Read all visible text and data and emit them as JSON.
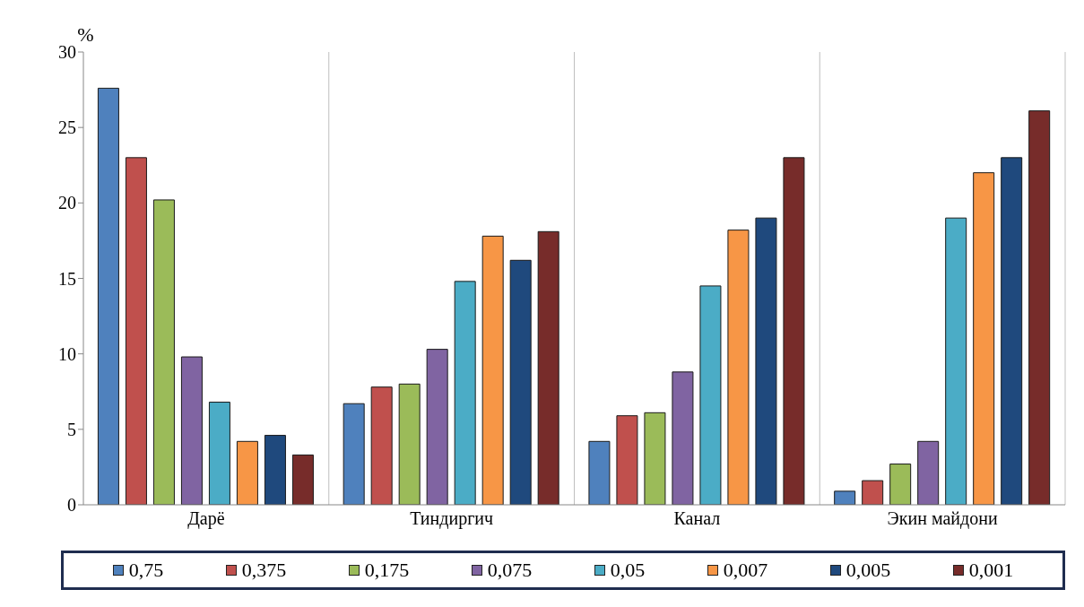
{
  "chart_data": {
    "type": "bar",
    "ylabel": "%",
    "categories": [
      "Дарё",
      "Тиндиргич",
      "Канал",
      "Экин майдони"
    ],
    "series": [
      {
        "name": "0,75",
        "color": "#4f81bd",
        "values": [
          27.6,
          6.7,
          4.2,
          0.9
        ]
      },
      {
        "name": "0,375",
        "color": "#c0504d",
        "values": [
          23.0,
          7.8,
          5.9,
          1.6
        ]
      },
      {
        "name": "0,175",
        "color": "#9bbb59",
        "values": [
          20.2,
          8.0,
          6.1,
          2.7
        ]
      },
      {
        "name": "0,075",
        "color": "#8064a2",
        "values": [
          9.8,
          10.3,
          8.8,
          4.2
        ]
      },
      {
        "name": "0,05",
        "color": "#4bacc6",
        "values": [
          6.8,
          14.8,
          14.5,
          19.0
        ]
      },
      {
        "name": "0,007",
        "color": "#f79646",
        "values": [
          4.2,
          17.8,
          18.2,
          22.0
        ]
      },
      {
        "name": "0,005",
        "color": "#1f497d",
        "values": [
          4.6,
          16.2,
          19.0,
          23.0
        ]
      },
      {
        "name": "0,001",
        "color": "#772c2a",
        "values": [
          3.3,
          18.1,
          23.0,
          26.1
        ]
      }
    ],
    "ylim": [
      0,
      30
    ],
    "yticks": [
      0,
      5,
      10,
      15,
      20,
      25,
      30
    ],
    "grid": "x",
    "legend": "bottom"
  }
}
